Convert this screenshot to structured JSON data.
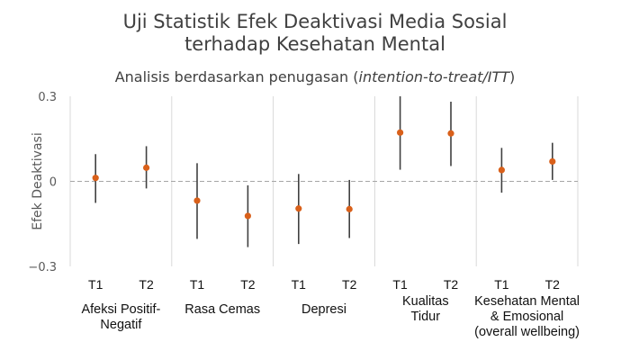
{
  "chart_data": {
    "type": "scatter",
    "title": "Uji Statistik Efek Deaktivasi Media Sosial terhadap Kesehatan Mental",
    "title_lines": [
      "Uji Statistik Efek Deaktivasi Media Sosial",
      "terhadap Kesehatan Mental"
    ],
    "subtitle_plain": "Analisis berdasarkan penugasan (",
    "subtitle_italic": "intention-to-treat/ITT",
    "subtitle_end": ")",
    "ylabel": "Efek Deaktivasi",
    "ylim": [
      -0.3,
      0.3
    ],
    "yticks": [
      {
        "v": 0.3,
        "label": "0.3"
      },
      {
        "v": 0,
        "label": "0"
      },
      {
        "v": -0.3,
        "label": "−0.3"
      }
    ],
    "reference_line": 0,
    "point_color": "#d9601a",
    "groups": [
      {
        "label": "Afeksi Positif-Negatif",
        "lines": [
          "Afeksi Positif-",
          "Negatif"
        ],
        "points": [
          {
            "x": "T1",
            "estimate": 0.012,
            "ci_low": -0.076,
            "ci_high": 0.096
          },
          {
            "x": "T2",
            "estimate": 0.048,
            "ci_low": -0.025,
            "ci_high": 0.124
          }
        ]
      },
      {
        "label": "Rasa Cemas",
        "lines": [
          "Rasa Cemas"
        ],
        "points": [
          {
            "x": "T1",
            "estimate": -0.068,
            "ci_low": -0.203,
            "ci_high": 0.064
          },
          {
            "x": "T2",
            "estimate": -0.122,
            "ci_low": -0.232,
            "ci_high": -0.014
          }
        ]
      },
      {
        "label": "Depresi",
        "lines": [
          "Depresi"
        ],
        "points": [
          {
            "x": "T1",
            "estimate": -0.096,
            "ci_low": -0.221,
            "ci_high": 0.026
          },
          {
            "x": "T2",
            "estimate": -0.098,
            "ci_low": -0.2,
            "ci_high": 0.005
          }
        ]
      },
      {
        "label": "Kualitas Tidur",
        "lines": [
          "Kualitas",
          "Tidur"
        ],
        "points": [
          {
            "x": "T1",
            "estimate": 0.172,
            "ci_low": 0.041,
            "ci_high": 0.3
          },
          {
            "x": "T2",
            "estimate": 0.169,
            "ci_low": 0.054,
            "ci_high": 0.281
          }
        ]
      },
      {
        "label": "Kesehatan Mental & Emosional (overall wellbeing)",
        "lines": [
          "Kesehatan Mental",
          "& Emosional",
          "(overall wellbeing)"
        ],
        "points": [
          {
            "x": "T1",
            "estimate": 0.04,
            "ci_low": -0.04,
            "ci_high": 0.118
          },
          {
            "x": "T2",
            "estimate": 0.07,
            "ci_low": 0.005,
            "ci_high": 0.136
          }
        ]
      }
    ]
  }
}
